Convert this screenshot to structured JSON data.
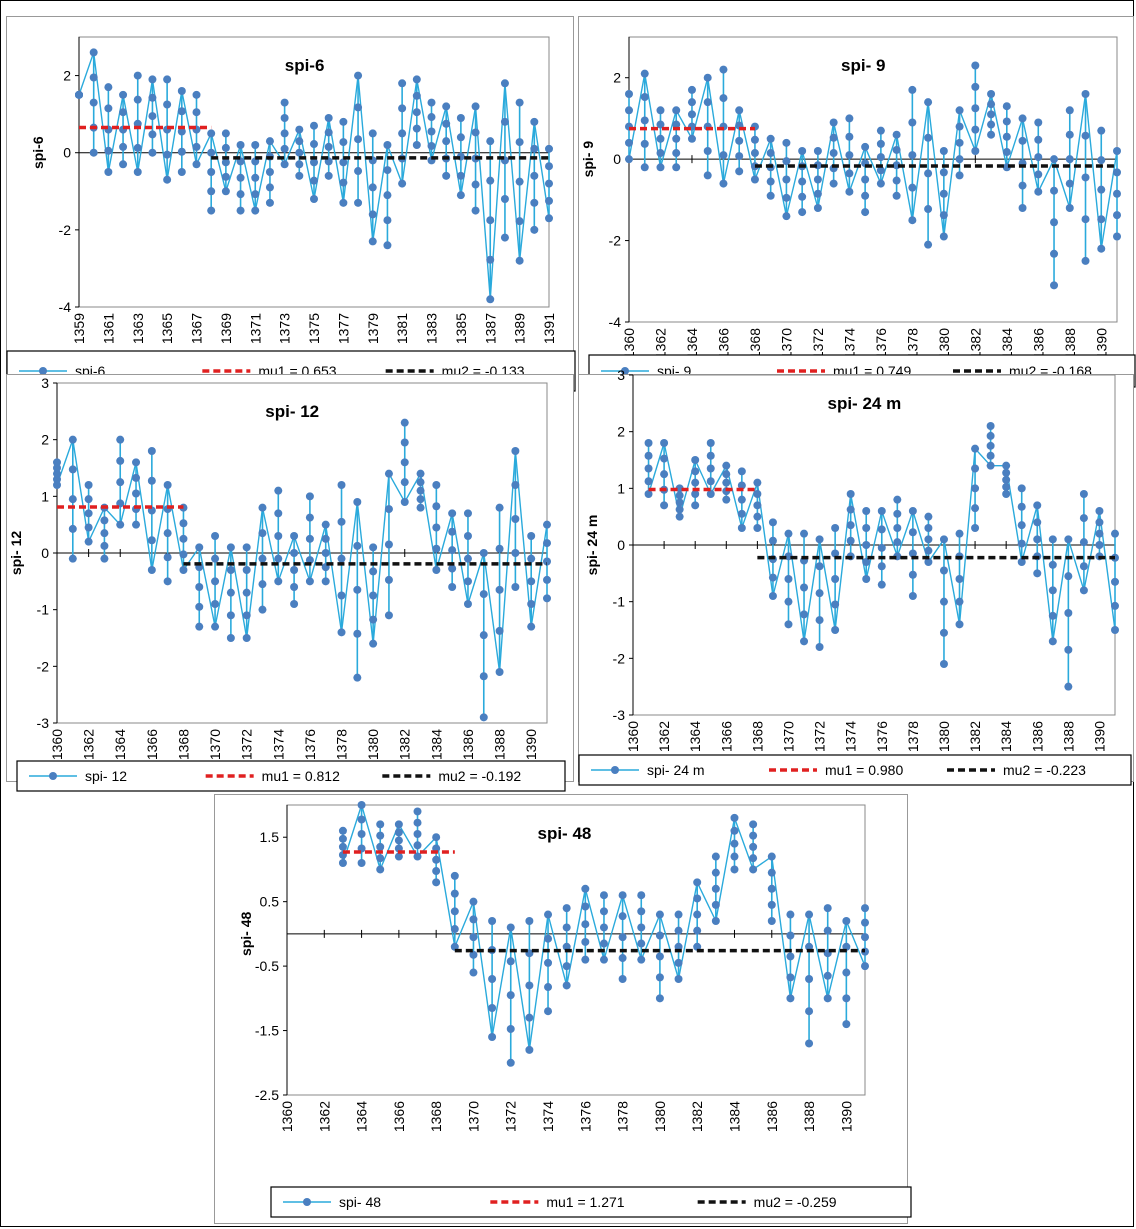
{
  "colors": {
    "series": "#2aaadc",
    "series_marker": "#4a7fc0",
    "mu1": "#e02020",
    "mu2": "#111111",
    "axis": "#000000"
  },
  "chart_data": [
    {
      "type": "line",
      "title": "spi-6",
      "ylabel": "spi-6",
      "xlabel": "",
      "x_ticks": [
        "1359",
        "1361",
        "1363",
        "1365",
        "1367",
        "1369",
        "1371",
        "1373",
        "1375",
        "1377",
        "1379",
        "1381",
        "1383",
        "1385",
        "1387",
        "1389",
        "1391"
      ],
      "y_ticks": [
        "2",
        "0",
        "-2",
        "-4"
      ],
      "xlim": [
        1359,
        1391
      ],
      "ylim": [
        -4,
        3
      ],
      "mu1": 0.653,
      "mu2": -0.133,
      "change_year": 1368,
      "legend": {
        "series": "spi-6",
        "mu1": "mu1 = 0.653",
        "mu2": "mu2 = -0.133"
      },
      "series": [
        {
          "name": "spi-6",
          "x": [
            1359,
            1360,
            1361,
            1362,
            1363,
            1364,
            1365,
            1366,
            1367,
            1368,
            1369,
            1370,
            1371,
            1372,
            1373,
            1374,
            1375,
            1376,
            1377,
            1378,
            1379,
            1380,
            1381,
            1382,
            1383,
            1384,
            1385,
            1386,
            1387,
            1388,
            1389,
            1390,
            1391
          ],
          "ymin": [
            1.5,
            0.0,
            -0.5,
            -0.3,
            -0.5,
            0.0,
            -0.7,
            -0.5,
            -0.3,
            -1.5,
            -1.0,
            -1.5,
            -1.5,
            -1.3,
            -0.3,
            -0.6,
            -1.2,
            -0.6,
            -1.3,
            -1.3,
            -2.3,
            -2.4,
            -0.8,
            0.2,
            -0.2,
            -0.6,
            -1.1,
            -1.5,
            -3.8,
            -2.2,
            -2.8,
            -2.0,
            -1.7
          ],
          "ymax": [
            1.5,
            2.6,
            1.7,
            1.5,
            2.0,
            1.9,
            1.9,
            1.6,
            1.5,
            0.5,
            0.5,
            0.2,
            0.2,
            0.3,
            1.3,
            0.6,
            0.7,
            0.9,
            0.8,
            2.0,
            0.5,
            0.2,
            1.8,
            1.9,
            1.3,
            1.2,
            0.9,
            1.2,
            0.3,
            1.8,
            1.3,
            0.8,
            0.1
          ]
        }
      ]
    },
    {
      "type": "line",
      "title": "spi- 9",
      "ylabel": "spi- 9",
      "xlabel": "",
      "x_ticks": [
        "1360",
        "1362",
        "1364",
        "1366",
        "1368",
        "1370",
        "1372",
        "1374",
        "1376",
        "1378",
        "1380",
        "1382",
        "1384",
        "1386",
        "1388",
        "1390"
      ],
      "y_ticks": [
        "2",
        "0",
        "-2",
        "-4"
      ],
      "xlim": [
        1360,
        1391
      ],
      "ylim": [
        -4,
        3
      ],
      "mu1": 0.749,
      "mu2": -0.168,
      "change_year": 1368,
      "legend": {
        "series": "spi- 9",
        "mu1": "mu1 = 0.749",
        "mu2": "mu2 = -0.168"
      },
      "series": [
        {
          "name": "spi- 9",
          "x": [
            1360,
            1361,
            1362,
            1363,
            1364,
            1365,
            1366,
            1367,
            1368,
            1369,
            1370,
            1371,
            1372,
            1373,
            1374,
            1375,
            1376,
            1377,
            1378,
            1379,
            1380,
            1381,
            1382,
            1383,
            1384,
            1385,
            1386,
            1387,
            1388,
            1389,
            1390,
            1391
          ],
          "ymin": [
            0.0,
            -0.2,
            -0.2,
            -0.2,
            0.5,
            -0.4,
            -0.6,
            -0.3,
            -0.5,
            -0.9,
            -1.4,
            -1.3,
            -1.2,
            -0.6,
            -0.8,
            -1.3,
            -0.6,
            -0.9,
            -1.5,
            -2.1,
            -1.9,
            -0.4,
            0.2,
            0.6,
            -0.2,
            -1.2,
            -0.8,
            -3.1,
            -1.2,
            -2.5,
            -2.2,
            -1.9
          ],
          "ymax": [
            1.6,
            2.1,
            1.2,
            1.2,
            1.7,
            2.0,
            2.2,
            1.2,
            0.8,
            0.5,
            0.4,
            0.2,
            0.2,
            0.9,
            1.0,
            0.3,
            0.7,
            0.6,
            1.7,
            1.4,
            0.2,
            1.2,
            2.3,
            1.6,
            1.3,
            1.0,
            0.9,
            0.0,
            1.2,
            1.6,
            0.7,
            0.2
          ]
        }
      ]
    },
    {
      "type": "line",
      "title": "spi- 12",
      "ylabel": "spi- 12",
      "xlabel": "",
      "x_ticks": [
        "1360",
        "1362",
        "1364",
        "1366",
        "1368",
        "1370",
        "1372",
        "1374",
        "1376",
        "1378",
        "1380",
        "1382",
        "1384",
        "1386",
        "1388",
        "1390"
      ],
      "y_ticks": [
        "3",
        "2",
        "1",
        "0",
        "-1",
        "-2",
        "-3"
      ],
      "xlim": [
        1360,
        1391
      ],
      "ylim": [
        -3,
        3
      ],
      "mu1": 0.812,
      "mu2": -0.192,
      "change_year": 1368,
      "legend": {
        "series": "spi- 12",
        "mu1": "mu1 = 0.812",
        "mu2": "mu2 = -0.192"
      },
      "series": [
        {
          "name": "spi- 12",
          "x": [
            1360,
            1361,
            1362,
            1363,
            1364,
            1365,
            1366,
            1367,
            1368,
            1369,
            1370,
            1371,
            1372,
            1373,
            1374,
            1375,
            1376,
            1377,
            1378,
            1379,
            1380,
            1381,
            1382,
            1383,
            1384,
            1385,
            1386,
            1387,
            1388,
            1389,
            1390,
            1391
          ],
          "ymin": [
            1.2,
            -0.1,
            0.2,
            -0.1,
            0.5,
            0.5,
            -0.3,
            -0.5,
            -0.3,
            -1.3,
            -1.3,
            -1.5,
            -1.5,
            -1.0,
            -0.5,
            -0.9,
            -0.5,
            -0.5,
            -1.4,
            -2.2,
            -1.6,
            -1.1,
            0.9,
            0.8,
            -0.3,
            -0.6,
            -0.9,
            -2.9,
            -2.1,
            -0.6,
            -1.3,
            -0.8
          ],
          "ymax": [
            1.6,
            2.0,
            1.2,
            0.8,
            2.0,
            1.6,
            1.8,
            1.2,
            0.8,
            0.1,
            0.3,
            0.1,
            0.1,
            0.8,
            1.1,
            0.3,
            1.0,
            0.5,
            1.2,
            0.9,
            0.1,
            1.4,
            2.3,
            1.4,
            1.2,
            0.7,
            0.7,
            0.0,
            0.8,
            1.8,
            0.3,
            0.5
          ]
        }
      ]
    },
    {
      "type": "line",
      "title": "spi- 24 m",
      "ylabel": "spi- 24 m",
      "xlabel": "",
      "x_ticks": [
        "1360",
        "1362",
        "1364",
        "1366",
        "1368",
        "1370",
        "1372",
        "1374",
        "1376",
        "1378",
        "1380",
        "1382",
        "1384",
        "1386",
        "1388",
        "1390"
      ],
      "y_ticks": [
        "3",
        "2",
        "1",
        "0",
        "-1",
        "-2",
        "-3"
      ],
      "xlim": [
        1360,
        1391
      ],
      "ylim": [
        -3,
        3
      ],
      "mu1": 0.98,
      "mu2": -0.223,
      "change_year": 1368,
      "legend": {
        "series": "spi- 24 m",
        "mu1": "mu1 = 0.980",
        "mu2": "mu2 = -0.223"
      },
      "series": [
        {
          "name": "spi- 24 m",
          "x": [
            1361,
            1362,
            1363,
            1364,
            1365,
            1366,
            1367,
            1368,
            1369,
            1370,
            1371,
            1372,
            1373,
            1374,
            1375,
            1376,
            1377,
            1378,
            1379,
            1380,
            1381,
            1382,
            1383,
            1384,
            1385,
            1386,
            1387,
            1388,
            1389,
            1390,
            1391
          ],
          "ymin": [
            0.9,
            0.7,
            0.5,
            0.7,
            0.9,
            0.8,
            0.3,
            0.3,
            -0.9,
            -1.4,
            -1.7,
            -1.8,
            -1.5,
            -0.2,
            -0.6,
            -0.7,
            -0.2,
            -0.9,
            -0.3,
            -2.1,
            -1.4,
            0.3,
            1.4,
            0.9,
            -0.3,
            -0.5,
            -1.7,
            -2.5,
            -0.8,
            -0.2,
            -1.5
          ],
          "ymax": [
            1.8,
            1.8,
            1.0,
            1.5,
            1.8,
            1.4,
            1.3,
            1.1,
            0.4,
            0.2,
            0.2,
            0.1,
            0.3,
            0.9,
            0.6,
            0.6,
            0.8,
            0.6,
            0.5,
            0.1,
            0.2,
            1.7,
            2.1,
            1.4,
            1.0,
            0.7,
            0.1,
            0.1,
            0.9,
            0.6,
            0.2
          ]
        }
      ]
    },
    {
      "type": "line",
      "title": "spi- 48",
      "ylabel": "spi- 48",
      "xlabel": "",
      "x_ticks": [
        "1360",
        "1362",
        "1364",
        "1366",
        "1368",
        "1370",
        "1372",
        "1374",
        "1376",
        "1378",
        "1380",
        "1382",
        "1384",
        "1386",
        "1388",
        "1390"
      ],
      "y_ticks": [
        "1.5",
        "0.5",
        "-0.5",
        "-1.5",
        "-2.5"
      ],
      "xlim": [
        1360,
        1391
      ],
      "ylim": [
        -2.5,
        2
      ],
      "mu1": 1.271,
      "mu2": -0.259,
      "change_year": 1369,
      "legend": {
        "series": "spi- 48",
        "mu1": "mu1 = 1.271",
        "mu2": "mu2 = -0.259"
      },
      "series": [
        {
          "name": "spi- 48",
          "x": [
            1363,
            1364,
            1365,
            1366,
            1367,
            1368,
            1369,
            1370,
            1371,
            1372,
            1373,
            1374,
            1375,
            1376,
            1377,
            1378,
            1379,
            1380,
            1381,
            1382,
            1383,
            1384,
            1385,
            1386,
            1387,
            1388,
            1389,
            1390,
            1391
          ],
          "ymin": [
            1.1,
            1.1,
            1.0,
            1.2,
            1.2,
            0.8,
            -0.2,
            -0.6,
            -1.6,
            -2.0,
            -1.8,
            -1.2,
            -0.8,
            -0.4,
            -0.4,
            -0.7,
            -0.4,
            -1.0,
            -0.7,
            -0.2,
            0.2,
            1.0,
            1.0,
            0.2,
            -1.0,
            -1.7,
            -1.0,
            -1.4,
            -0.5
          ],
          "ymax": [
            1.6,
            2.0,
            1.7,
            1.7,
            1.9,
            1.5,
            0.9,
            0.5,
            0.2,
            0.1,
            0.2,
            0.3,
            0.4,
            0.7,
            0.6,
            0.6,
            0.6,
            0.3,
            0.3,
            0.8,
            1.2,
            1.8,
            1.7,
            1.2,
            0.3,
            0.3,
            0.4,
            0.2,
            0.4
          ]
        }
      ]
    }
  ]
}
